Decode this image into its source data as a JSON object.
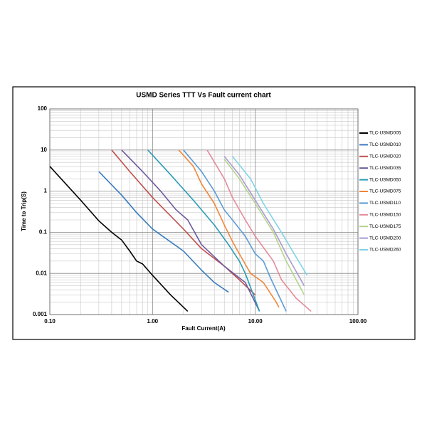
{
  "chart_data": {
    "type": "line",
    "title": "USMD Series TTT Vs Fault current chart",
    "x_label": "Fault Current(A)",
    "y_label": "Time to Trip(S)",
    "log_x": true,
    "log_y": true,
    "grid": true,
    "legend": "right",
    "xlim": [
      0.1,
      100
    ],
    "xticks": [
      {
        "value": 0.1,
        "label": "0.10"
      },
      {
        "value": 1,
        "label": "1.00"
      },
      {
        "value": 10,
        "label": "10.00"
      },
      {
        "value": 100,
        "label": "100.00"
      }
    ],
    "ylim": [
      0.001,
      100
    ],
    "yticks": [
      0.001,
      0.01,
      0.1,
      1,
      10,
      100
    ],
    "series": [
      {
        "name": "TLC-USMD005",
        "color": "#000000",
        "x": [
          0.1,
          0.2,
          0.3,
          0.4,
          0.5,
          0.6,
          0.7,
          0.8,
          1.0,
          1.5,
          2.2
        ],
        "values": [
          4,
          0.6,
          0.19,
          0.1,
          0.065,
          0.035,
          0.02,
          0.017,
          0.009,
          0.003,
          0.0012
        ]
      },
      {
        "name": "TLC-USMD010",
        "color": "#3a7bbf",
        "x": [
          0.3,
          0.5,
          0.7,
          1,
          2,
          3,
          4,
          5.5
        ],
        "values": [
          3,
          0.8,
          0.3,
          0.12,
          0.035,
          0.012,
          0.006,
          0.0035
        ]
      },
      {
        "name": "TLC-USMD020",
        "color": "#c0504d",
        "x": [
          0.4,
          0.6,
          1,
          2,
          3,
          5,
          7,
          10
        ],
        "values": [
          10,
          3,
          0.7,
          0.12,
          0.04,
          0.015,
          0.007,
          0.003
        ]
      },
      {
        "name": "TLC-USMD035",
        "color": "#6d5a9e",
        "x": [
          0.5,
          0.8,
          1.2,
          1.7,
          2.2,
          3,
          5,
          8,
          11
        ],
        "values": [
          10,
          3,
          1,
          0.35,
          0.2,
          0.05,
          0.015,
          0.006,
          0.0012
        ]
      },
      {
        "name": "TLC-USMD050",
        "color": "#2a9bb5",
        "x": [
          0.9,
          1.5,
          2.5,
          4,
          5.5,
          7,
          8,
          11
        ],
        "values": [
          10,
          2.5,
          0.6,
          0.15,
          0.05,
          0.02,
          0.01,
          0.0012
        ]
      },
      {
        "name": "TLC-USMD075",
        "color": "#f0873a",
        "x": [
          1.8,
          2.5,
          3,
          4,
          5,
          6,
          7,
          9,
          12,
          16,
          17
        ],
        "values": [
          10,
          4,
          1.5,
          0.5,
          0.15,
          0.06,
          0.03,
          0.01,
          0.006,
          0.002,
          0.0015
        ]
      },
      {
        "name": "TLC-USMD110",
        "color": "#5b9bd5",
        "x": [
          2,
          3,
          4,
          5,
          6,
          8,
          10,
          12,
          14,
          20
        ],
        "values": [
          10,
          3,
          1,
          0.35,
          0.2,
          0.08,
          0.03,
          0.02,
          0.008,
          0.0012
        ]
      },
      {
        "name": "TLC-USMD150",
        "color": "#e58a9a",
        "x": [
          3.4,
          5,
          6,
          8,
          10,
          15,
          18,
          25,
          35
        ],
        "values": [
          10,
          2,
          0.7,
          0.2,
          0.08,
          0.02,
          0.007,
          0.0025,
          0.0012
        ]
      },
      {
        "name": "TLC-USMD175",
        "color": "#b5d48a",
        "x": [
          5,
          7,
          10,
          15,
          20,
          30
        ],
        "values": [
          6,
          2,
          0.5,
          0.1,
          0.02,
          0.003
        ]
      },
      {
        "name": "TLC-USMD200",
        "color": "#a99bd0",
        "x": [
          5,
          7,
          10,
          15,
          20,
          30
        ],
        "values": [
          7,
          2.5,
          0.6,
          0.12,
          0.03,
          0.005
        ]
      },
      {
        "name": "TLC-USMD260",
        "color": "#7fd3e6",
        "x": [
          6,
          9,
          12,
          18,
          25,
          32
        ],
        "values": [
          7,
          2,
          0.5,
          0.1,
          0.025,
          0.009
        ]
      }
    ]
  }
}
